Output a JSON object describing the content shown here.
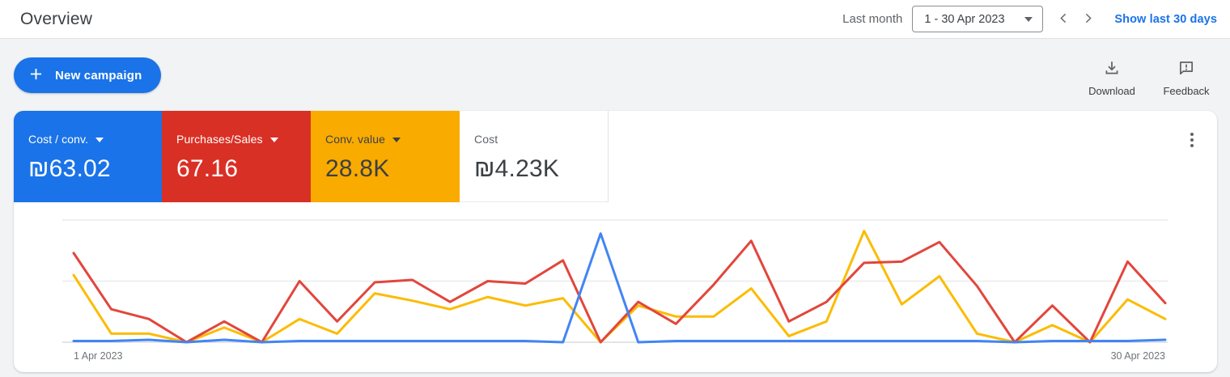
{
  "header": {
    "title": "Overview",
    "period_label": "Last month",
    "date_range": "1 - 30 Apr 2023",
    "show_link": "Show last 30 days"
  },
  "toolbar": {
    "new_campaign": "New campaign",
    "download": "Download",
    "feedback": "Feedback"
  },
  "scorecards": [
    {
      "label": "Cost / conv.",
      "value": "₪63.02",
      "bg": "#1a73e8",
      "text": "#ffffff",
      "dropdown": true
    },
    {
      "label": "Purchases/Sales",
      "value": "67.16",
      "bg": "#d93025",
      "text": "#ffffff",
      "dropdown": true
    },
    {
      "label": "Conv. value",
      "value": "28.8K",
      "bg": "#f9ab00",
      "text": "#3c4043",
      "dropdown": true
    },
    {
      "label": "Cost",
      "value": "₪4.23K",
      "bg": "#ffffff",
      "text": "#3c4043",
      "dropdown": false
    }
  ],
  "theme": {
    "accent": "#1a73e8",
    "page_bg": "#f1f3f4",
    "panel_bg": "#ffffff",
    "grid_color": "#e9ebed",
    "baseline_color": "#dadce0",
    "muted_text": "#5f6368"
  },
  "chart_data": {
    "type": "line",
    "x": [
      1,
      2,
      3,
      4,
      5,
      6,
      7,
      8,
      9,
      10,
      11,
      12,
      13,
      14,
      15,
      16,
      17,
      18,
      19,
      20,
      21,
      22,
      23,
      24,
      25,
      26,
      27,
      28,
      29,
      30
    ],
    "x_axis_label_start": "1 Apr 2023",
    "x_axis_label_end": "30 Apr 2023",
    "ylim": [
      0,
      100
    ],
    "y_axis_labels_shown": false,
    "grid": true,
    "legend": "none",
    "series": [
      {
        "name": "Cost / conv.",
        "color": "#4285f4",
        "values": [
          1,
          1,
          2,
          0,
          2,
          0,
          1,
          1,
          1,
          1,
          1,
          1,
          1,
          0,
          89,
          0,
          1,
          1,
          1,
          1,
          1,
          1,
          1,
          1,
          1,
          0,
          1,
          1,
          1,
          2
        ]
      },
      {
        "name": "Purchases/Sales",
        "color": "#e2463c",
        "values": [
          73,
          27,
          19,
          0,
          17,
          0,
          50,
          17,
          49,
          51,
          33,
          50,
          48,
          67,
          0,
          33,
          15,
          47,
          83,
          17,
          33,
          65,
          66,
          82,
          46,
          0,
          30,
          0,
          66,
          32
        ]
      },
      {
        "name": "Conv. value",
        "color": "#fbbc04",
        "values": [
          55,
          7,
          7,
          0,
          12,
          0,
          19,
          7,
          40,
          34,
          27,
          37,
          30,
          36,
          0,
          30,
          21,
          21,
          44,
          5,
          17,
          91,
          31,
          54,
          7,
          0,
          14,
          0,
          35,
          19
        ]
      }
    ]
  }
}
